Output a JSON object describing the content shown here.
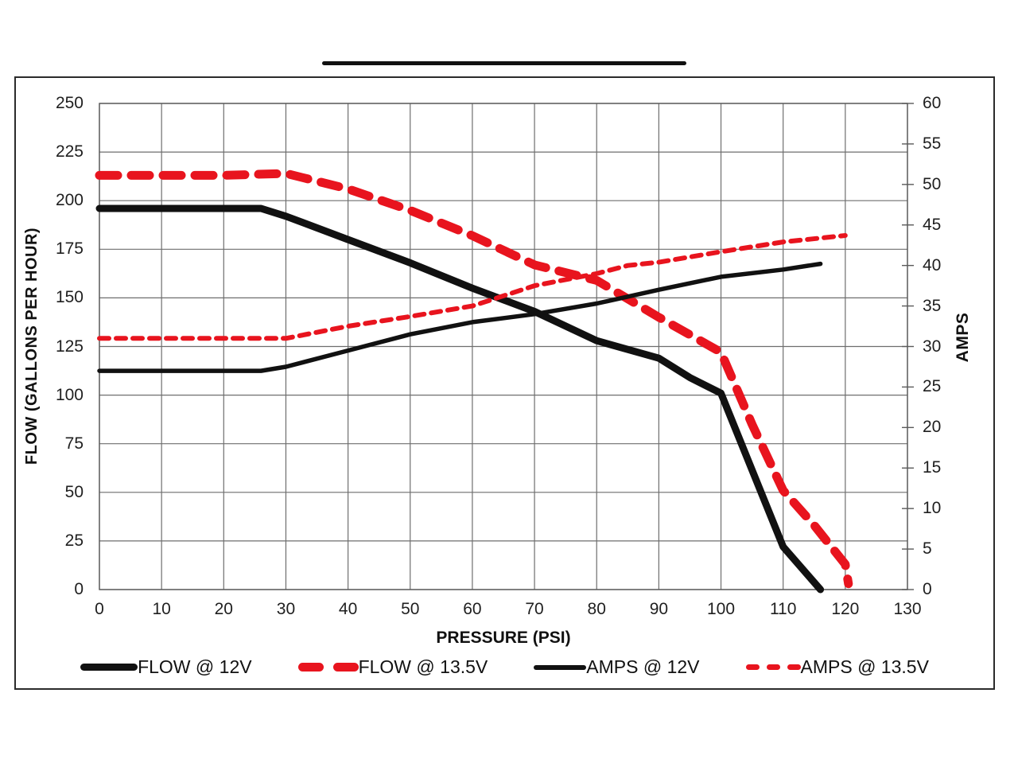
{
  "figure": {
    "note": "chart of fuel pump flow and current draw vs pressure",
    "title_underline": "black rule above chart (title cropped out of screenshot)"
  },
  "chart_data": {
    "type": "line",
    "title": "",
    "xlabel": "PRESSURE (PSI)",
    "ylabel_left": "FLOW (GALLONS PER HOUR)",
    "ylabel_right": "AMPS",
    "x_range": [
      0,
      130
    ],
    "y_left_range": [
      0,
      250
    ],
    "y_right_range": [
      0,
      60
    ],
    "x_ticks": [
      0,
      10,
      20,
      30,
      40,
      50,
      60,
      70,
      80,
      90,
      100,
      110,
      120,
      130
    ],
    "y_left_ticks": [
      0,
      25,
      50,
      75,
      100,
      125,
      150,
      175,
      200,
      225,
      250
    ],
    "y_right_ticks": [
      0,
      5,
      10,
      15,
      20,
      25,
      30,
      35,
      40,
      45,
      50,
      55,
      60
    ],
    "grid": true,
    "legend_position": "bottom",
    "colors": {
      "black": "#111111",
      "red": "#e8141e",
      "grid": "#6e6e6e"
    },
    "series": [
      {
        "name": "FLOW @ 12V",
        "axis": "left",
        "color": "#111111",
        "dash": "solid",
        "width": 9,
        "swatch": "thick-solid",
        "points": [
          [
            0,
            196
          ],
          [
            10,
            196
          ],
          [
            20,
            196
          ],
          [
            26,
            196
          ],
          [
            30,
            192
          ],
          [
            40,
            180
          ],
          [
            50,
            168
          ],
          [
            60,
            155
          ],
          [
            70,
            143
          ],
          [
            80,
            128
          ],
          [
            90,
            119
          ],
          [
            95,
            109
          ],
          [
            100,
            101
          ],
          [
            110,
            22
          ],
          [
            116,
            0
          ]
        ]
      },
      {
        "name": "FLOW @ 13.5V",
        "axis": "left",
        "color": "#e8141e",
        "dash": "dashed",
        "width": 11,
        "dash_array": [
          23,
          17
        ],
        "swatch": "thick-dashed",
        "points": [
          [
            0,
            213
          ],
          [
            10,
            213
          ],
          [
            20,
            213
          ],
          [
            30,
            214
          ],
          [
            40,
            206
          ],
          [
            50,
            195
          ],
          [
            60,
            182
          ],
          [
            70,
            167
          ],
          [
            80,
            159
          ],
          [
            90,
            140
          ],
          [
            95,
            131
          ],
          [
            100,
            122
          ],
          [
            105,
            85
          ],
          [
            110,
            51
          ],
          [
            115,
            33
          ],
          [
            120,
            13
          ],
          [
            120.5,
            3
          ]
        ]
      },
      {
        "name": "AMPS @ 12V",
        "axis": "right",
        "color": "#111111",
        "dash": "solid",
        "width": 5.5,
        "swatch": "thin-solid",
        "points": [
          [
            0,
            27
          ],
          [
            10,
            27
          ],
          [
            20,
            27
          ],
          [
            26,
            27
          ],
          [
            30,
            27.5
          ],
          [
            40,
            29.5
          ],
          [
            50,
            31.5
          ],
          [
            60,
            33
          ],
          [
            70,
            34
          ],
          [
            80,
            35.3
          ],
          [
            90,
            37
          ],
          [
            100,
            38.6
          ],
          [
            110,
            39.5
          ],
          [
            116,
            40.2
          ]
        ]
      },
      {
        "name": "AMPS @ 13.5V",
        "axis": "right",
        "color": "#e8141e",
        "dash": "dashed",
        "width": 6,
        "dash_array": [
          12,
          9
        ],
        "swatch": "thin-dashed",
        "points": [
          [
            0,
            31
          ],
          [
            10,
            31
          ],
          [
            20,
            31
          ],
          [
            30,
            31
          ],
          [
            40,
            32.5
          ],
          [
            50,
            33.7
          ],
          [
            60,
            35
          ],
          [
            70,
            37.5
          ],
          [
            80,
            39
          ],
          [
            85,
            40
          ],
          [
            90,
            40.4
          ],
          [
            100,
            41.7
          ],
          [
            110,
            42.9
          ],
          [
            120,
            43.7
          ]
        ]
      }
    ]
  }
}
